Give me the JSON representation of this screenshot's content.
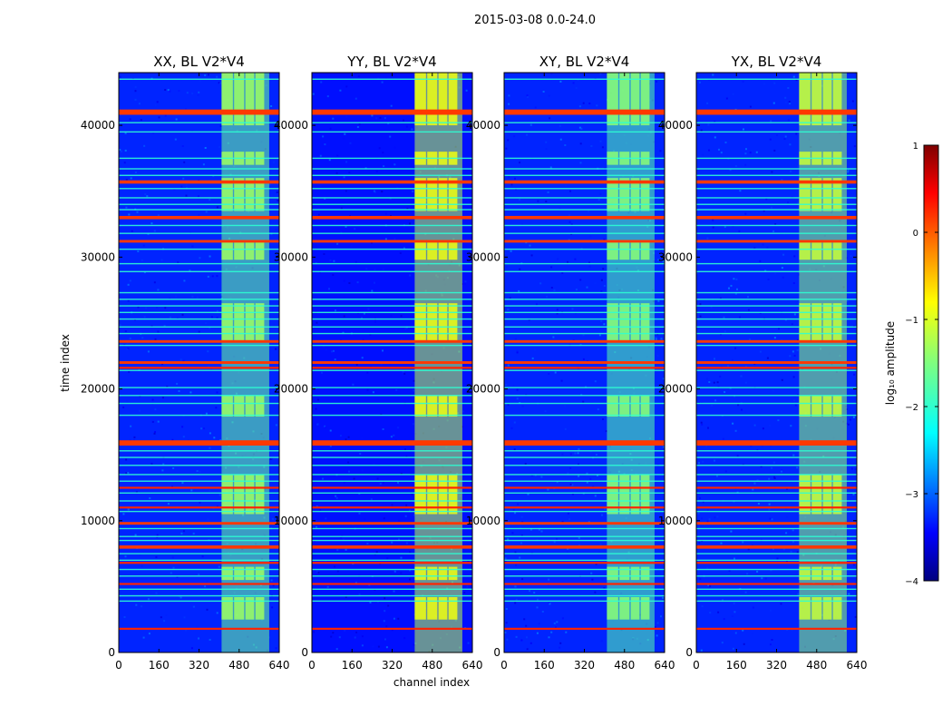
{
  "chart_data": {
    "type": "heatmap",
    "title": "2015-03-08 0.0-24.0",
    "xlabel": "channel index",
    "ylabel": "time index",
    "x_range": [
      0,
      640
    ],
    "y_range": [
      0,
      44000
    ],
    "x_ticks": [
      0,
      160,
      320,
      480,
      640
    ],
    "y_ticks": [
      0,
      10000,
      20000,
      30000,
      40000
    ],
    "colormap": "jet",
    "colorbar": {
      "label": "log₁₀ amplitude",
      "range": [
        -4,
        1
      ],
      "ticks": [
        1,
        0,
        -1,
        -2,
        -3,
        -4
      ],
      "tick_labels": [
        "1",
        "0",
        "−1",
        "−2",
        "−3",
        "−4"
      ]
    },
    "panels": [
      {
        "title": "XX, BL V2*V4",
        "background_level": -3.2,
        "band_level": -1.6
      },
      {
        "title": "YY, BL V2*V4",
        "background_level": -3.3,
        "band_level": -1.2
      },
      {
        "title": "XY, BL V2*V4",
        "background_level": -3.2,
        "band_level": -1.7
      },
      {
        "title": "YX, BL V2*V4",
        "background_level": -3.2,
        "band_level": -1.4
      }
    ],
    "rfi_channel_band": [
      410,
      600
    ],
    "flagged_time_rows": [
      {
        "t": 41000,
        "width": 400,
        "level": 0.1
      },
      {
        "t": 35700,
        "width": 250,
        "level": 0.1
      },
      {
        "t": 33000,
        "width": 250,
        "level": 0.1
      },
      {
        "t": 31200,
        "width": 200,
        "level": 0.1
      },
      {
        "t": 23600,
        "width": 200,
        "level": 0.1
      },
      {
        "t": 22000,
        "width": 200,
        "level": 0.1
      },
      {
        "t": 21600,
        "width": 150,
        "level": 0.2
      },
      {
        "t": 15900,
        "width": 400,
        "level": 0.1
      },
      {
        "t": 12500,
        "width": 150,
        "level": 0.2
      },
      {
        "t": 11000,
        "width": 150,
        "level": 0.2
      },
      {
        "t": 9800,
        "width": 200,
        "level": 0.1
      },
      {
        "t": 8000,
        "width": 250,
        "level": 0.1
      },
      {
        "t": 6800,
        "width": 150,
        "level": 0.2
      },
      {
        "t": 5200,
        "width": 150,
        "level": 0.2
      },
      {
        "t": 1800,
        "width": 150,
        "level": 0.2
      }
    ],
    "bright_time_rows": [
      43500,
      40200,
      39500,
      37500,
      36700,
      36200,
      35200,
      34500,
      34000,
      33600,
      32400,
      31800,
      30600,
      29500,
      28900,
      27300,
      26800,
      26300,
      25800,
      25300,
      24700,
      24200,
      23300,
      21400,
      20100,
      19500,
      18900,
      18000,
      15300,
      14800,
      14200,
      13500,
      13000,
      12100,
      11500,
      10700,
      9400,
      8800,
      8500,
      7500,
      7000,
      6300,
      5800,
      4800,
      4300,
      3900
    ]
  }
}
